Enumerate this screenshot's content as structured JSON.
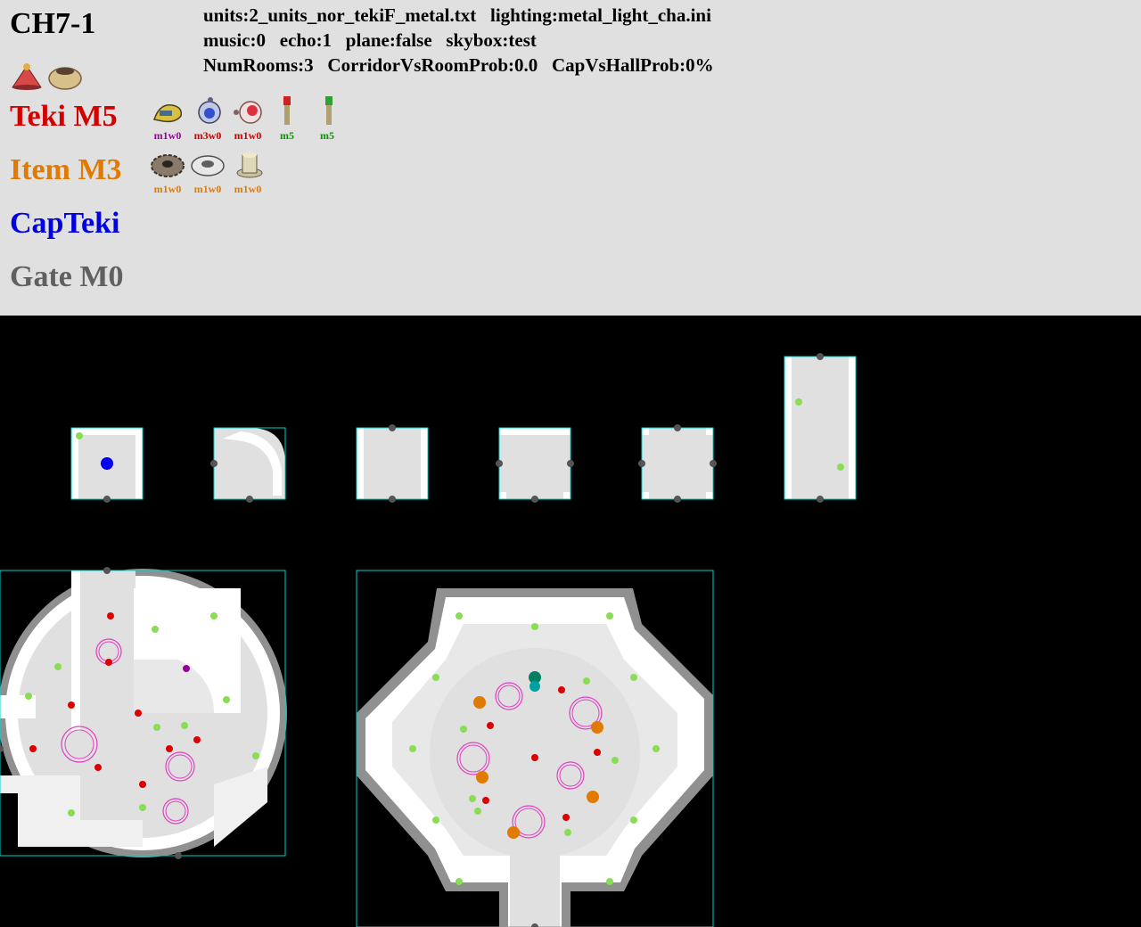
{
  "header": {
    "title": "CH7-1",
    "info_line1": "units:2_units_nor_tekiF_metal.txt   lighting:metal_light_cha.ini",
    "info_line2": "music:0   echo:1   plane:false   skybox:test",
    "info_line3": "NumRooms:3   CorridorVsRoomProb:0.0   CapVsHallProb:0%"
  },
  "categories": {
    "teki": {
      "label": "Teki M5",
      "color": "#d40000"
    },
    "item": {
      "label": "Item M3",
      "color": "#e07a00"
    },
    "capteki": {
      "label": "CapTeki",
      "color": "#0000e0"
    },
    "gate": {
      "label": "Gate M0",
      "color": "#606060"
    }
  },
  "teki_entries": [
    {
      "icon": "bulborb-larva-icon",
      "code": "m1w0",
      "color": "#990099"
    },
    {
      "icon": "anode-beetle-icon",
      "code": "m3w0",
      "color": "#cc0000"
    },
    {
      "icon": "swooping-snitchbug-icon",
      "code": "m1w0",
      "color": "#cc0000"
    },
    {
      "icon": "red-pellet-posy-icon",
      "code": "m5",
      "color": "#009900"
    },
    {
      "icon": "green-pellet-posy-icon",
      "code": "m5",
      "color": "#009900"
    }
  ],
  "item_entries": [
    {
      "icon": "gear-part-icon",
      "code": "m1w0",
      "color": "#e07a00"
    },
    {
      "icon": "nut-part-icon",
      "code": "m1w0",
      "color": "#e07a00"
    },
    {
      "icon": "bolt-part-icon",
      "code": "m1w0",
      "color": "#e07a00"
    }
  ],
  "header_icons": [
    "red-flower-icon",
    "clay-pot-icon"
  ],
  "map_colors": {
    "floor": "#e0e0e0",
    "wall": "#ffffff",
    "edge": "#909090",
    "outline": "#00d0d0",
    "door": "#555555",
    "spawn_green": "#88dd55",
    "spawn_red": "#dd0000",
    "spawn_purple": "#990099",
    "cap_blue": "#0000ee",
    "item_orange": "#e07a00",
    "teal": "#00998a",
    "ring": "#e040c0"
  }
}
